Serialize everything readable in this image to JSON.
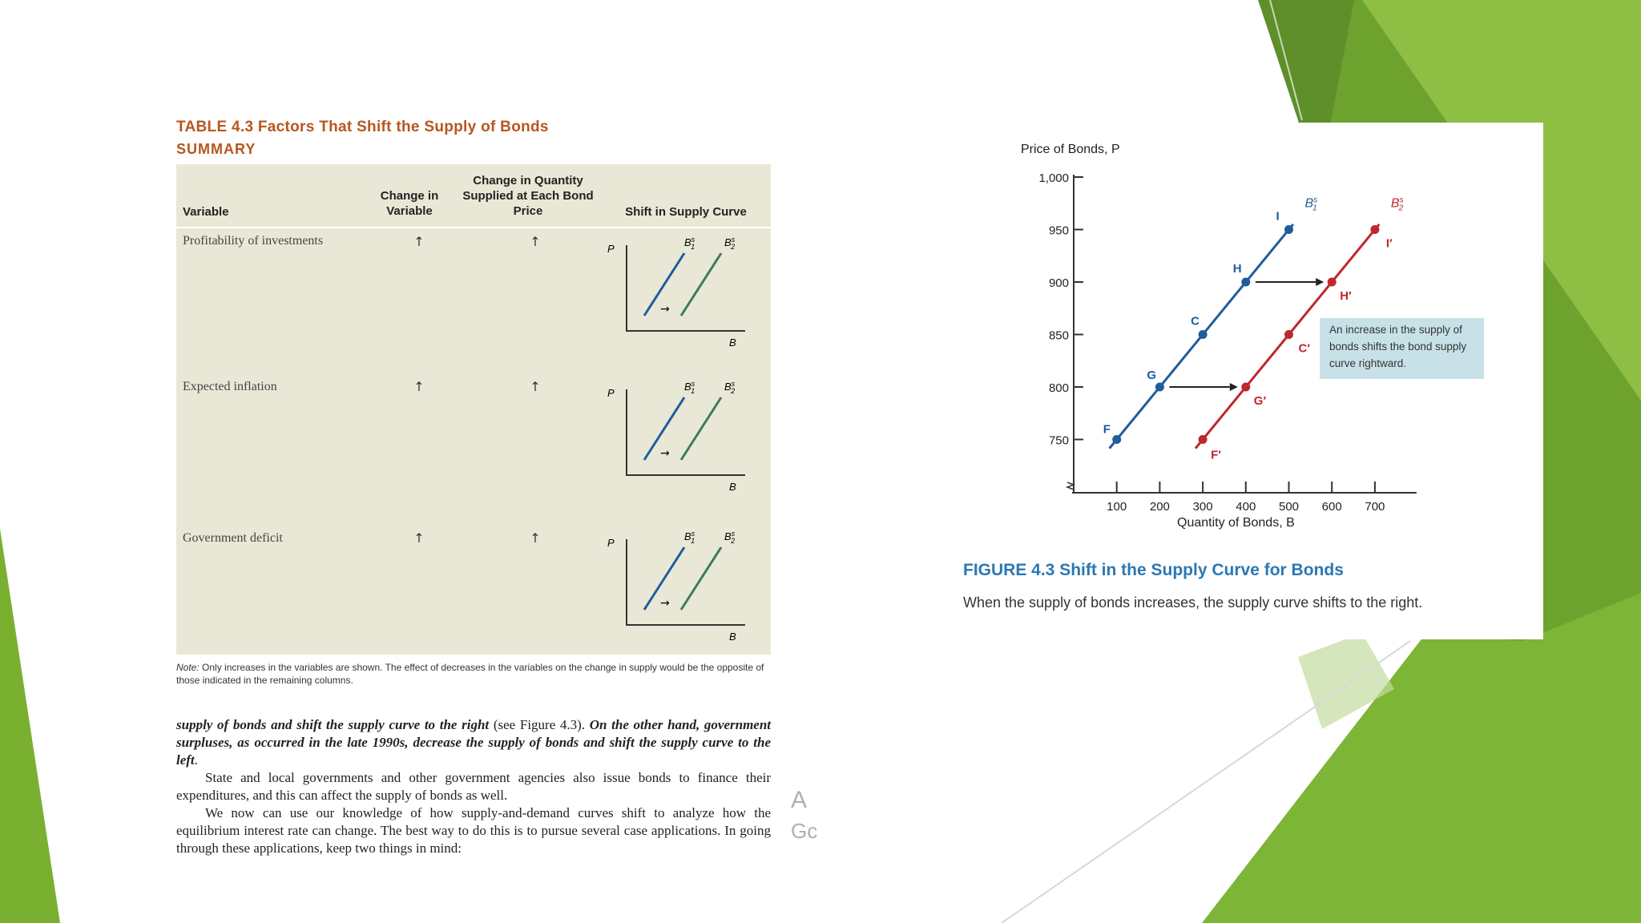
{
  "colors": {
    "accent_orange": "#b8561f",
    "figure_blue": "#2a78b3",
    "curve_blue": "#1f5d9b",
    "curve_red": "#c0262c",
    "slide_green": "#7ab030"
  },
  "table": {
    "title": "TABLE 4.3  Factors That Shift the Supply of Bonds",
    "subtitle": "SUMMARY",
    "headers": {
      "variable": "Variable",
      "change_in_variable": "Change in Variable",
      "change_in_quantity": "Change in Quantity Supplied at Each Bond Price",
      "shift": "Shift in Supply Curve"
    },
    "rows": [
      {
        "variable": "Profitability of investments",
        "change": "↑",
        "quantity": "↑"
      },
      {
        "variable": "Expected inflation",
        "change": "↑",
        "quantity": "↑"
      },
      {
        "variable": "Government deficit",
        "change": "↑",
        "quantity": "↑"
      }
    ],
    "mini_chart": {
      "y_label": "P",
      "x_label": "B",
      "curve1": "B",
      "curve1_sup": "s",
      "curve1_sub": "1",
      "curve2": "B",
      "curve2_sup": "s",
      "curve2_sub": "2",
      "arrow": "→"
    },
    "note_label": "Note:",
    "note": "Only increases in the variables are shown. The effect of decreases in the variables on the change in supply would be the opposite of those indicated in the remaining columns."
  },
  "body": {
    "p1_bold1": "supply of bonds and shift the supply curve to the right",
    "p1_plain": " (see Figure 4.3). ",
    "p1_bold2": "On the other hand, government surpluses, as occurred in the late 1990s, decrease the supply of bonds and shift the supply curve to the left",
    "p1_end": ".",
    "p2": "State and local governments and other government agencies also issue bonds to finance their expenditures, and this can affect the supply of bonds as well.",
    "p3": "We now can use our knowledge of how supply-and-demand curves shift to analyze how the equilibrium interest rate can change. The best way to do this is to pursue several case applications. In going through these applications, keep two things in mind:"
  },
  "cutoff_text": {
    "line1": "A",
    "line2": "Gc"
  },
  "figure": {
    "title": "FIGURE 4.3  Shift in the Supply Curve for Bonds",
    "caption": "When the supply of bonds increases, the supply curve shifts to the right.",
    "callout": "An increase in the supply of bonds shifts the bond supply curve rightward."
  },
  "chart_data": {
    "type": "line",
    "ylabel": "Price of Bonds, P",
    "xlabel": "Quantity of Bonds, B",
    "y_ticks": [
      "1,000",
      "950",
      "900",
      "850",
      "800",
      "750"
    ],
    "x_ticks": [
      "100",
      "200",
      "300",
      "400",
      "500",
      "600",
      "700"
    ],
    "ylim": [
      700,
      1000
    ],
    "xlim": [
      0,
      700
    ],
    "series": [
      {
        "name": "B1s",
        "label": "B",
        "sup": "s",
        "sub": "1",
        "points": [
          {
            "label": "F",
            "x": 100,
            "y": 750
          },
          {
            "label": "G",
            "x": 200,
            "y": 800
          },
          {
            "label": "C",
            "x": 300,
            "y": 850
          },
          {
            "label": "H",
            "x": 400,
            "y": 900
          },
          {
            "label": "I",
            "x": 500,
            "y": 950
          }
        ]
      },
      {
        "name": "B2s",
        "label": "B",
        "sup": "s",
        "sub": "2",
        "points": [
          {
            "label": "F′",
            "x": 300,
            "y": 750
          },
          {
            "label": "G′",
            "x": 400,
            "y": 800
          },
          {
            "label": "C′",
            "x": 500,
            "y": 850
          },
          {
            "label": "H′",
            "x": 600,
            "y": 900
          },
          {
            "label": "I′",
            "x": 700,
            "y": 950
          }
        ]
      }
    ],
    "shift_arrows": [
      {
        "from": [
          200,
          800
        ],
        "to": [
          400,
          800
        ]
      },
      {
        "from": [
          400,
          900
        ],
        "to": [
          600,
          900
        ]
      }
    ]
  }
}
